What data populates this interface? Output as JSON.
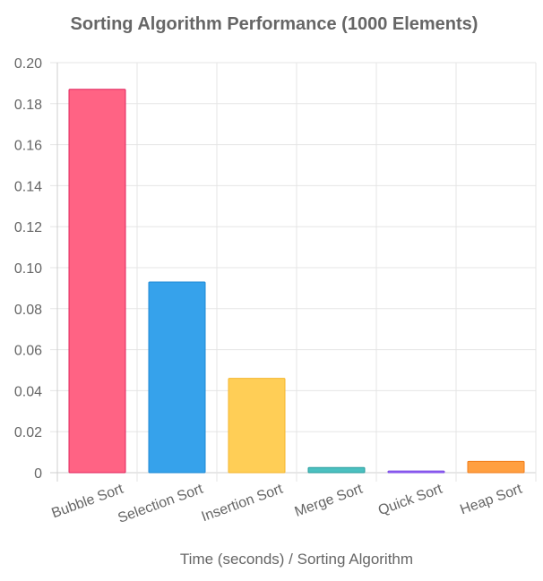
{
  "chart_data": {
    "type": "bar",
    "title": "Sorting Algorithm Performance (1000 Elements)",
    "xlabel": "Time (seconds) / Sorting Algorithm",
    "ylabel": "",
    "categories": [
      "Bubble Sort",
      "Selection Sort",
      "Insertion Sort",
      "Merge Sort",
      "Quick Sort",
      "Heap Sort"
    ],
    "values": [
      0.187,
      0.093,
      0.046,
      0.0025,
      0.0008,
      0.0055
    ],
    "ylim": [
      0,
      0.2
    ],
    "yticks": [
      "0",
      "0.02",
      "0.04",
      "0.06",
      "0.08",
      "0.10",
      "0.12",
      "0.14",
      "0.16",
      "0.18",
      "0.20"
    ],
    "grid": true,
    "legend": "none",
    "colors": {
      "fill": [
        "#ff6384",
        "#36a2eb",
        "#ffce56",
        "#4bc0c0",
        "#9966ff",
        "#ff9f40"
      ],
      "border": [
        "#e0245e",
        "#1f8ad6",
        "#f5b62e",
        "#2a9d9d",
        "#7a4be0",
        "#f07d1a"
      ]
    }
  }
}
